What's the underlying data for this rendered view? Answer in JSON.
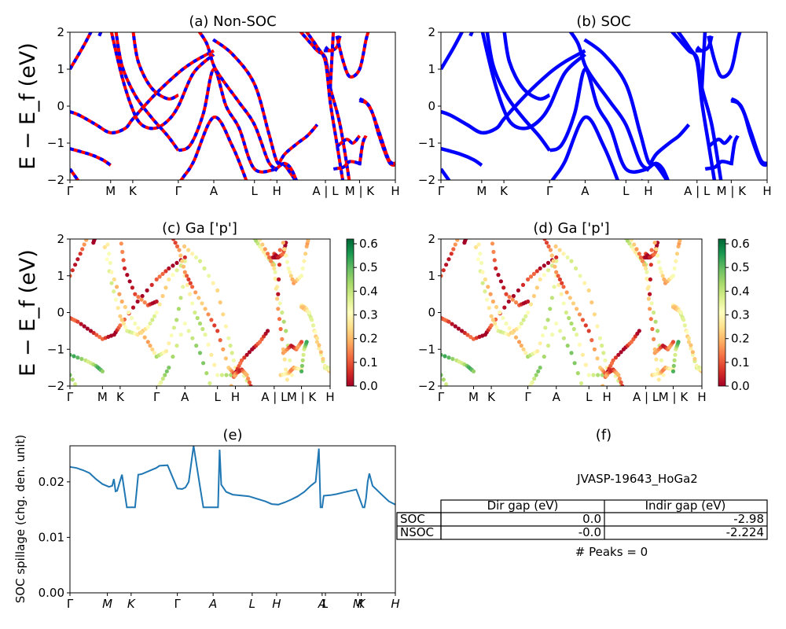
{
  "panels": {
    "a": {
      "title": "(a) Non-SOC"
    },
    "b": {
      "title": "(b) SOC"
    },
    "c": {
      "title": "(c)  Ga ['p']"
    },
    "d": {
      "title": "(d) Ga ['p']"
    },
    "e": {
      "title": "(e)"
    },
    "f": {
      "title": "(f)"
    }
  },
  "band_ylabel": "E − E_f (eV)",
  "spill_ylabel": "SOC spillage (chg. den. unit)",
  "kpath_labels": [
    "Γ",
    "M",
    "K",
    "Γ",
    "A",
    "L",
    "H",
    "A | L",
    "M | K",
    "H"
  ],
  "kpath_labels_c": [
    "Γ",
    "M",
    "K",
    "Γ",
    "A",
    "L",
    "H",
    "A | L",
    "M | K",
    "H"
  ],
  "kpath_labels_e": [
    "Γ",
    "M",
    "K",
    "Γ",
    "A",
    "L",
    "H",
    "A",
    "L",
    "M",
    "K",
    "H"
  ],
  "colorbar_ticks": [
    "0.0",
    "0.1",
    "0.2",
    "0.3",
    "0.4",
    "0.5",
    "0.6"
  ],
  "table": {
    "id_label": "JVASP-19643_HoGa2",
    "headers": [
      "Dir gap (eV)",
      "Indir gap (eV)"
    ],
    "rows": [
      {
        "name": "SOC",
        "dir": "0.0",
        "indir": "-2.98"
      },
      {
        "name": "NSOC",
        "dir": "-0.0",
        "indir": "-2.224"
      }
    ],
    "peaks": "# Peaks = 0"
  },
  "colors": {
    "nonsoc": "#ff0000",
    "soc": "#0000ff",
    "spill": "#1f77b4"
  },
  "chart_data": [
    {
      "panel": "a",
      "type": "line",
      "ylim": [
        -2,
        2
      ],
      "yticks": [
        -2,
        -1,
        0,
        1,
        2
      ],
      "series": [
        {
          "name": "Non-SOC",
          "x": [
            0,
            0.07,
            0.11,
            0.2
          ],
          "y": [
            1,
            1.8,
            2,
            1.6
          ]
        }
      ]
    },
    {
      "panel": "b",
      "type": "line",
      "ylim": [
        -2,
        2
      ],
      "yticks": [
        -2,
        -1,
        0,
        1,
        2
      ]
    },
    {
      "panel": "c",
      "type": "scatter",
      "ylim": [
        -2,
        2
      ],
      "yticks": [
        -2,
        -1,
        0,
        1,
        2
      ],
      "colorbar_range": [
        0,
        0.62
      ]
    },
    {
      "panel": "d",
      "type": "scatter",
      "ylim": [
        -2,
        2
      ],
      "yticks": [
        -2,
        -1,
        0,
        1,
        2
      ],
      "colorbar_range": [
        0,
        0.62
      ]
    },
    {
      "panel": "e",
      "type": "line",
      "ylim": [
        0,
        0.0265
      ],
      "yticks": [
        "0.00",
        "0.01",
        "0.02"
      ],
      "series": [
        {
          "x": [
            0,
            0.02,
            0.04,
            0.06,
            0.08,
            0.1,
            0.12,
            0.13,
            0.135,
            0.14,
            0.145,
            0.16,
            0.175,
            0.18,
            0.185,
            0.2,
            0.21,
            0.22,
            0.265,
            0.275,
            0.3,
            0.33,
            0.345,
            0.355,
            0.365,
            0.38,
            0.4,
            0.41,
            0.415,
            0.42,
            0.43,
            0.44,
            0.455,
            0.46,
            0.465,
            0.48,
            0.5,
            0.55,
            0.6,
            0.62,
            0.64,
            0.66,
            0.68,
            0.7,
            0.72,
            0.74,
            0.755,
            0.765,
            0.77,
            0.775,
            0.78,
            0.8,
            0.82,
            0.84,
            0.88,
            0.9,
            0.905,
            0.91,
            0.915,
            0.92,
            0.93,
            0.96,
            0.98,
            1.0
          ],
          "y": [
            0.0227,
            0.0225,
            0.0221,
            0.0216,
            0.0205,
            0.0196,
            0.0191,
            0.0193,
            0.0205,
            0.0183,
            0.0184,
            0.0213,
            0.0154,
            0.0154,
            0.0154,
            0.0154,
            0.0213,
            0.0214,
            0.0225,
            0.0229,
            0.023,
            0.0188,
            0.0187,
            0.019,
            0.02,
            0.0265,
            0.019,
            0.0154,
            0.0154,
            0.0154,
            0.0154,
            0.0154,
            0.0154,
            0.0258,
            0.0195,
            0.0182,
            0.0177,
            0.0174,
            0.0165,
            0.016,
            0.0159,
            0.0163,
            0.0168,
            0.0174,
            0.0182,
            0.0193,
            0.02,
            0.026,
            0.0154,
            0.0154,
            0.0175,
            0.0176,
            0.0178,
            0.0181,
            0.0186,
            0.0154,
            0.0154,
            0.017,
            0.02,
            0.0215,
            0.0193,
            0.0176,
            0.0165,
            0.0159
          ]
        }
      ]
    }
  ]
}
